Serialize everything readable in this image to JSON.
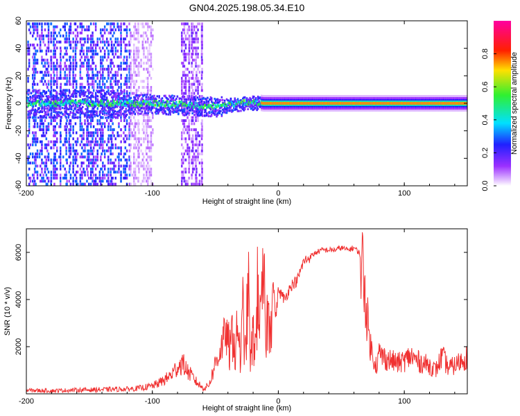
{
  "title": "GN04.2025.198.05.34.E10",
  "chart_data": [
    {
      "type": "heatmap",
      "xlabel": "Height of straight line (km)",
      "ylabel": "Frequency (Hz)",
      "xlim": [
        -200,
        150
      ],
      "ylim": [
        -60,
        60
      ],
      "x_ticks": [
        -200,
        -100,
        0,
        100
      ],
      "x_tick_labels": [
        "-200",
        "-100",
        "0",
        "100"
      ],
      "y_ticks": [
        60,
        40,
        20,
        0,
        -20,
        -40,
        -60
      ],
      "y_tick_labels": [
        "60",
        "40",
        "20",
        "0",
        "-20",
        "-40",
        "-60"
      ],
      "colorbar": {
        "label": "Normalized spectral amplitude",
        "range": [
          0,
          1
        ],
        "ticks": [
          0.0,
          0.2,
          0.4,
          0.6,
          0.8
        ],
        "tick_labels": [
          "0.0",
          "0.2",
          "0.4",
          "0.6",
          "0.8"
        ],
        "colors": [
          "#ffffff",
          "#9b30ff",
          "#2020ff",
          "#00e0ff",
          "#30f030",
          "#ffe000",
          "#ff2000",
          "#ff00a0"
        ]
      },
      "ridge": [
        {
          "x": -200,
          "y": 0
        },
        {
          "x": -150,
          "y": 0
        },
        {
          "x": -100,
          "y": 0
        },
        {
          "x": -75,
          "y": -1
        },
        {
          "x": -50,
          "y": -2
        },
        {
          "x": -40,
          "y": -1
        },
        {
          "x": -20,
          "y": 1
        },
        {
          "x": -12,
          "y": 0
        },
        {
          "x": 0,
          "y": 0
        },
        {
          "x": 50,
          "y": 0
        },
        {
          "x": 100,
          "y": 0
        },
        {
          "x": 150,
          "y": 0
        }
      ],
      "scatter_regions": [
        {
          "x_range": [
            -200,
            -118
          ],
          "y_range": [
            -60,
            60
          ],
          "level": 0.2
        },
        {
          "x_range": [
            -118,
            -100
          ],
          "y_range": [
            -60,
            60
          ],
          "level": 0.05
        },
        {
          "x_range": [
            -78,
            -60
          ],
          "y_range": [
            -60,
            60
          ],
          "level": 0.1
        }
      ],
      "bg_color": "#ffffff"
    },
    {
      "type": "line",
      "xlabel": "Height of straight line (km)",
      "ylabel": "SNR (10 * v/v)",
      "xlim": [
        -200,
        150
      ],
      "ylim": [
        0,
        7000
      ],
      "x_ticks": [
        -200,
        -100,
        0,
        100
      ],
      "x_tick_labels": [
        "-200",
        "-100",
        "0",
        "100"
      ],
      "y_ticks": [
        2000,
        4000,
        6000
      ],
      "y_tick_labels": [
        "2000",
        "4000",
        "6000"
      ],
      "series": [
        {
          "color": "#f03030",
          "x": [
            -200,
            -180,
            -160,
            -140,
            -120,
            -110,
            -100,
            -95,
            -90,
            -85,
            -80,
            -76,
            -72,
            -68,
            -65,
            -62,
            -60,
            -58,
            -55,
            -52,
            -50,
            -47,
            -44,
            -42,
            -40,
            -38,
            -36,
            -34,
            -32,
            -30,
            -28,
            -26,
            -24,
            -22,
            -20,
            -18,
            -16,
            -14,
            -12,
            -10,
            -8,
            -6,
            -4,
            -2,
            0,
            5,
            10,
            15,
            20,
            25,
            30,
            35,
            40,
            45,
            50,
            55,
            60,
            62,
            64,
            66,
            68,
            70,
            72,
            74,
            76,
            78,
            80,
            85,
            90,
            95,
            100,
            105,
            110,
            115,
            120,
            125,
            130,
            135,
            140,
            145,
            150
          ],
          "y": [
            150,
            130,
            160,
            180,
            200,
            240,
            330,
            450,
            600,
            800,
            1150,
            1300,
            950,
            700,
            500,
            350,
            250,
            250,
            400,
            900,
            1300,
            1700,
            2200,
            2600,
            2200,
            1700,
            3000,
            1400,
            3300,
            1200,
            3600,
            1500,
            4700,
            1300,
            2500,
            2000,
            5000,
            2500,
            4900,
            2800,
            3200,
            3700,
            4700,
            3200,
            4400,
            4000,
            4600,
            4800,
            5600,
            5800,
            6000,
            6100,
            6100,
            6100,
            6200,
            6100,
            6200,
            6100,
            6000,
            5600,
            5000,
            3500,
            2500,
            1800,
            1500,
            1200,
            1700,
            1500,
            1400,
            1300,
            1400,
            1600,
            1400,
            1300,
            1200,
            1000,
            1600,
            1100,
            1200,
            1400,
            1600
          ]
        }
      ]
    }
  ]
}
